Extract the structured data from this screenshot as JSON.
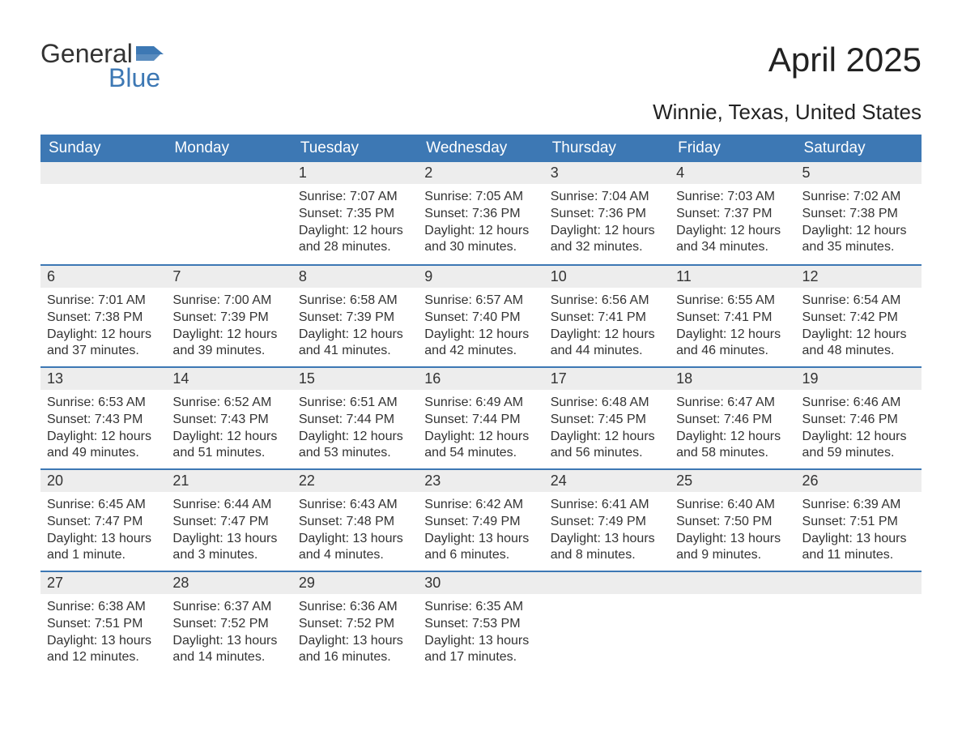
{
  "logo": {
    "line1": "General",
    "line2": "Blue"
  },
  "title": "April 2025",
  "location": "Winnie, Texas, United States",
  "colors": {
    "header_bg": "#3d78b4",
    "header_text": "#ffffff",
    "daynum_bg": "#ededed",
    "row_border": "#3d78b4",
    "body_text": "#333333",
    "page_bg": "#ffffff",
    "logo_accent": "#3d78b4"
  },
  "typography": {
    "month_title_fontsize": 42,
    "location_fontsize": 26,
    "dayheader_fontsize": 19,
    "daynum_fontsize": 18,
    "body_fontsize": 16
  },
  "day_headers": [
    "Sunday",
    "Monday",
    "Tuesday",
    "Wednesday",
    "Thursday",
    "Friday",
    "Saturday"
  ],
  "weeks": [
    [
      null,
      null,
      {
        "n": "1",
        "sr": "Sunrise: 7:07 AM",
        "ss": "Sunset: 7:35 PM",
        "dl": "Daylight: 12 hours and 28 minutes."
      },
      {
        "n": "2",
        "sr": "Sunrise: 7:05 AM",
        "ss": "Sunset: 7:36 PM",
        "dl": "Daylight: 12 hours and 30 minutes."
      },
      {
        "n": "3",
        "sr": "Sunrise: 7:04 AM",
        "ss": "Sunset: 7:36 PM",
        "dl": "Daylight: 12 hours and 32 minutes."
      },
      {
        "n": "4",
        "sr": "Sunrise: 7:03 AM",
        "ss": "Sunset: 7:37 PM",
        "dl": "Daylight: 12 hours and 34 minutes."
      },
      {
        "n": "5",
        "sr": "Sunrise: 7:02 AM",
        "ss": "Sunset: 7:38 PM",
        "dl": "Daylight: 12 hours and 35 minutes."
      }
    ],
    [
      {
        "n": "6",
        "sr": "Sunrise: 7:01 AM",
        "ss": "Sunset: 7:38 PM",
        "dl": "Daylight: 12 hours and 37 minutes."
      },
      {
        "n": "7",
        "sr": "Sunrise: 7:00 AM",
        "ss": "Sunset: 7:39 PM",
        "dl": "Daylight: 12 hours and 39 minutes."
      },
      {
        "n": "8",
        "sr": "Sunrise: 6:58 AM",
        "ss": "Sunset: 7:39 PM",
        "dl": "Daylight: 12 hours and 41 minutes."
      },
      {
        "n": "9",
        "sr": "Sunrise: 6:57 AM",
        "ss": "Sunset: 7:40 PM",
        "dl": "Daylight: 12 hours and 42 minutes."
      },
      {
        "n": "10",
        "sr": "Sunrise: 6:56 AM",
        "ss": "Sunset: 7:41 PM",
        "dl": "Daylight: 12 hours and 44 minutes."
      },
      {
        "n": "11",
        "sr": "Sunrise: 6:55 AM",
        "ss": "Sunset: 7:41 PM",
        "dl": "Daylight: 12 hours and 46 minutes."
      },
      {
        "n": "12",
        "sr": "Sunrise: 6:54 AM",
        "ss": "Sunset: 7:42 PM",
        "dl": "Daylight: 12 hours and 48 minutes."
      }
    ],
    [
      {
        "n": "13",
        "sr": "Sunrise: 6:53 AM",
        "ss": "Sunset: 7:43 PM",
        "dl": "Daylight: 12 hours and 49 minutes."
      },
      {
        "n": "14",
        "sr": "Sunrise: 6:52 AM",
        "ss": "Sunset: 7:43 PM",
        "dl": "Daylight: 12 hours and 51 minutes."
      },
      {
        "n": "15",
        "sr": "Sunrise: 6:51 AM",
        "ss": "Sunset: 7:44 PM",
        "dl": "Daylight: 12 hours and 53 minutes."
      },
      {
        "n": "16",
        "sr": "Sunrise: 6:49 AM",
        "ss": "Sunset: 7:44 PM",
        "dl": "Daylight: 12 hours and 54 minutes."
      },
      {
        "n": "17",
        "sr": "Sunrise: 6:48 AM",
        "ss": "Sunset: 7:45 PM",
        "dl": "Daylight: 12 hours and 56 minutes."
      },
      {
        "n": "18",
        "sr": "Sunrise: 6:47 AM",
        "ss": "Sunset: 7:46 PM",
        "dl": "Daylight: 12 hours and 58 minutes."
      },
      {
        "n": "19",
        "sr": "Sunrise: 6:46 AM",
        "ss": "Sunset: 7:46 PM",
        "dl": "Daylight: 12 hours and 59 minutes."
      }
    ],
    [
      {
        "n": "20",
        "sr": "Sunrise: 6:45 AM",
        "ss": "Sunset: 7:47 PM",
        "dl": "Daylight: 13 hours and 1 minute."
      },
      {
        "n": "21",
        "sr": "Sunrise: 6:44 AM",
        "ss": "Sunset: 7:47 PM",
        "dl": "Daylight: 13 hours and 3 minutes."
      },
      {
        "n": "22",
        "sr": "Sunrise: 6:43 AM",
        "ss": "Sunset: 7:48 PM",
        "dl": "Daylight: 13 hours and 4 minutes."
      },
      {
        "n": "23",
        "sr": "Sunrise: 6:42 AM",
        "ss": "Sunset: 7:49 PM",
        "dl": "Daylight: 13 hours and 6 minutes."
      },
      {
        "n": "24",
        "sr": "Sunrise: 6:41 AM",
        "ss": "Sunset: 7:49 PM",
        "dl": "Daylight: 13 hours and 8 minutes."
      },
      {
        "n": "25",
        "sr": "Sunrise: 6:40 AM",
        "ss": "Sunset: 7:50 PM",
        "dl": "Daylight: 13 hours and 9 minutes."
      },
      {
        "n": "26",
        "sr": "Sunrise: 6:39 AM",
        "ss": "Sunset: 7:51 PM",
        "dl": "Daylight: 13 hours and 11 minutes."
      }
    ],
    [
      {
        "n": "27",
        "sr": "Sunrise: 6:38 AM",
        "ss": "Sunset: 7:51 PM",
        "dl": "Daylight: 13 hours and 12 minutes."
      },
      {
        "n": "28",
        "sr": "Sunrise: 6:37 AM",
        "ss": "Sunset: 7:52 PM",
        "dl": "Daylight: 13 hours and 14 minutes."
      },
      {
        "n": "29",
        "sr": "Sunrise: 6:36 AM",
        "ss": "Sunset: 7:52 PM",
        "dl": "Daylight: 13 hours and 16 minutes."
      },
      {
        "n": "30",
        "sr": "Sunrise: 6:35 AM",
        "ss": "Sunset: 7:53 PM",
        "dl": "Daylight: 13 hours and 17 minutes."
      },
      null,
      null,
      null
    ]
  ]
}
